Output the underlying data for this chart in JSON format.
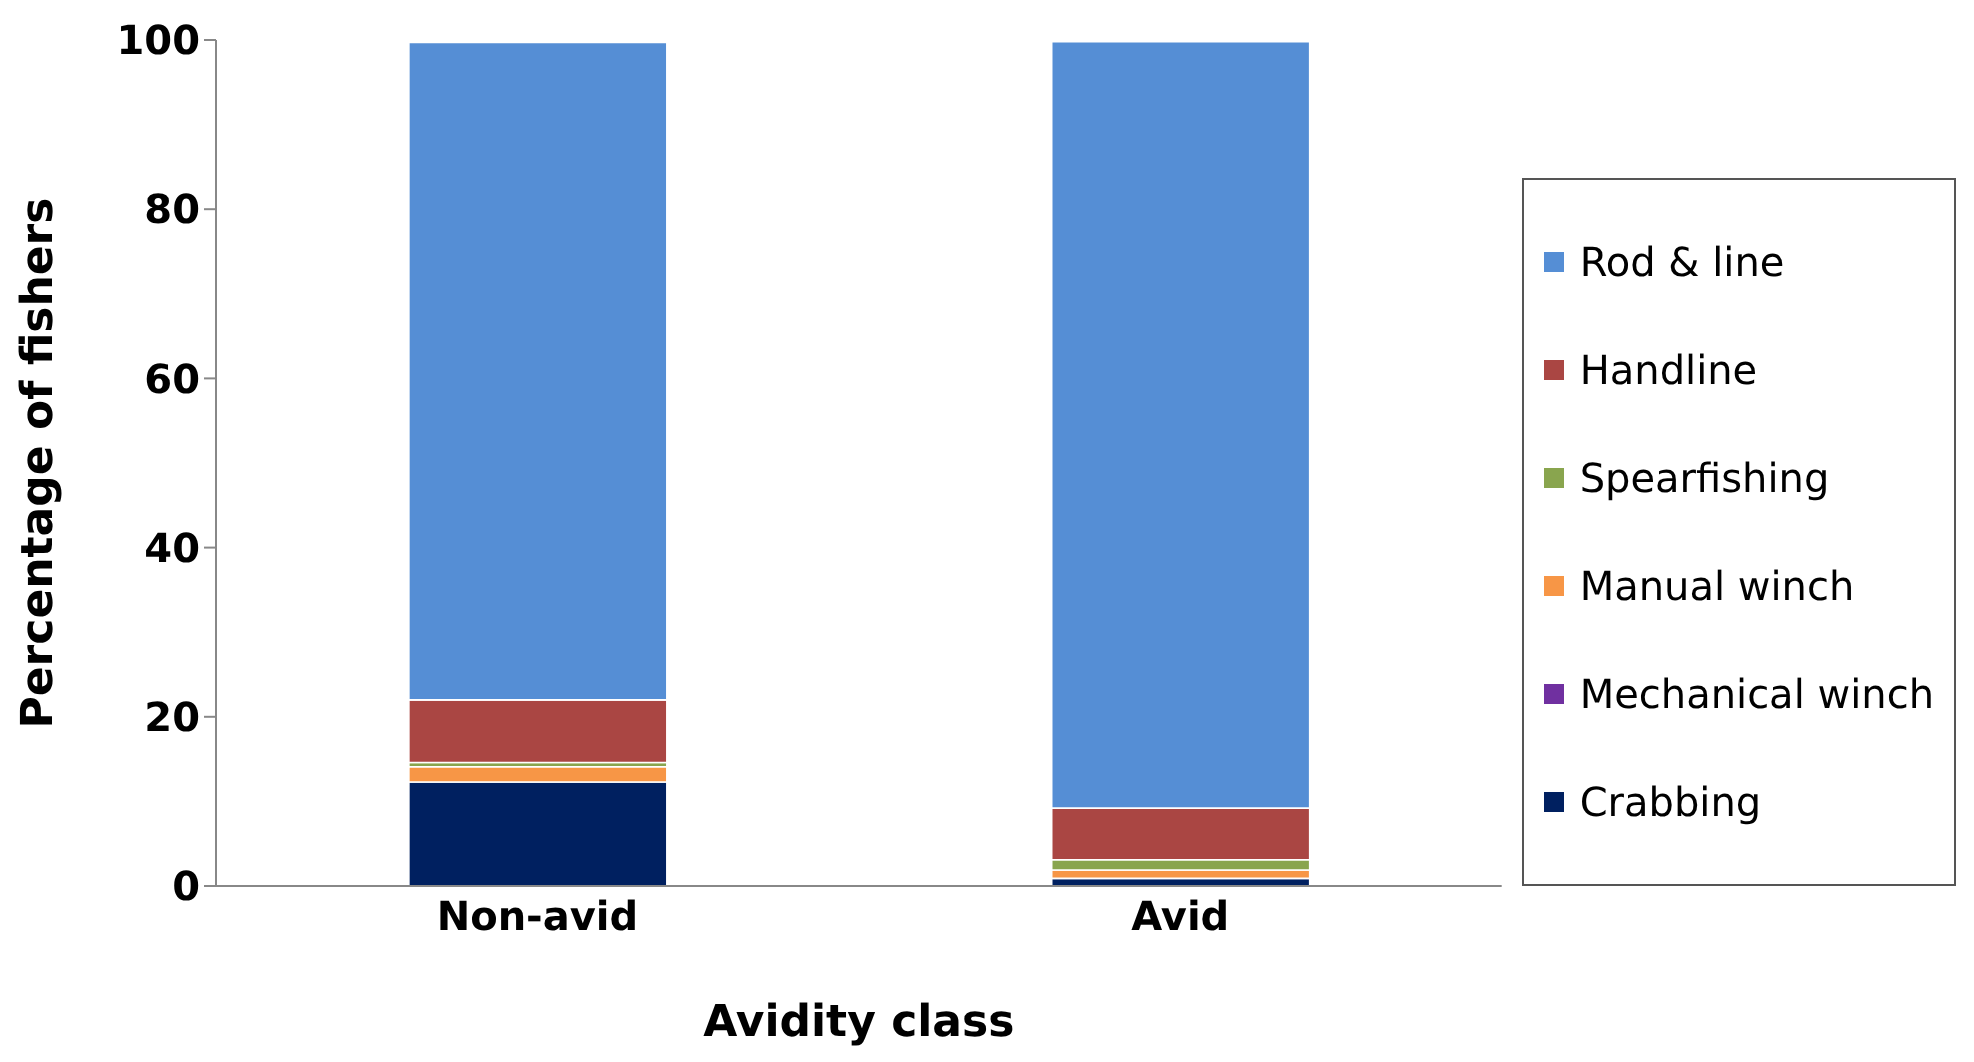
{
  "chart_data": {
    "type": "bar",
    "stacked": true,
    "xlabel": "Avidity class",
    "ylabel": "Percentage of fishers",
    "categories": [
      "Non-avid",
      "Avid"
    ],
    "series": [
      {
        "name": "Crabbing",
        "color": "#002060",
        "values": [
          12.3,
          0.9
        ]
      },
      {
        "name": "Mechanical winch",
        "color": "#7030a0",
        "values": [
          null,
          null
        ]
      },
      {
        "name": "Manual winch",
        "color": "#f79646",
        "values": [
          1.8,
          1.0
        ]
      },
      {
        "name": "Spearfishing",
        "color": "#89a54e",
        "values": [
          0.5,
          1.2
        ]
      },
      {
        "name": "Handline",
        "color": "#aa4643",
        "values": [
          7.4,
          6.1
        ]
      },
      {
        "name": "Rod & line",
        "color": "#558ed5",
        "values": [
          77.7,
          90.6
        ]
      }
    ],
    "ylim": [
      0,
      100
    ],
    "yticks": [
      0,
      20,
      40,
      60,
      80,
      100
    ],
    "grid": false,
    "legend": "right"
  }
}
